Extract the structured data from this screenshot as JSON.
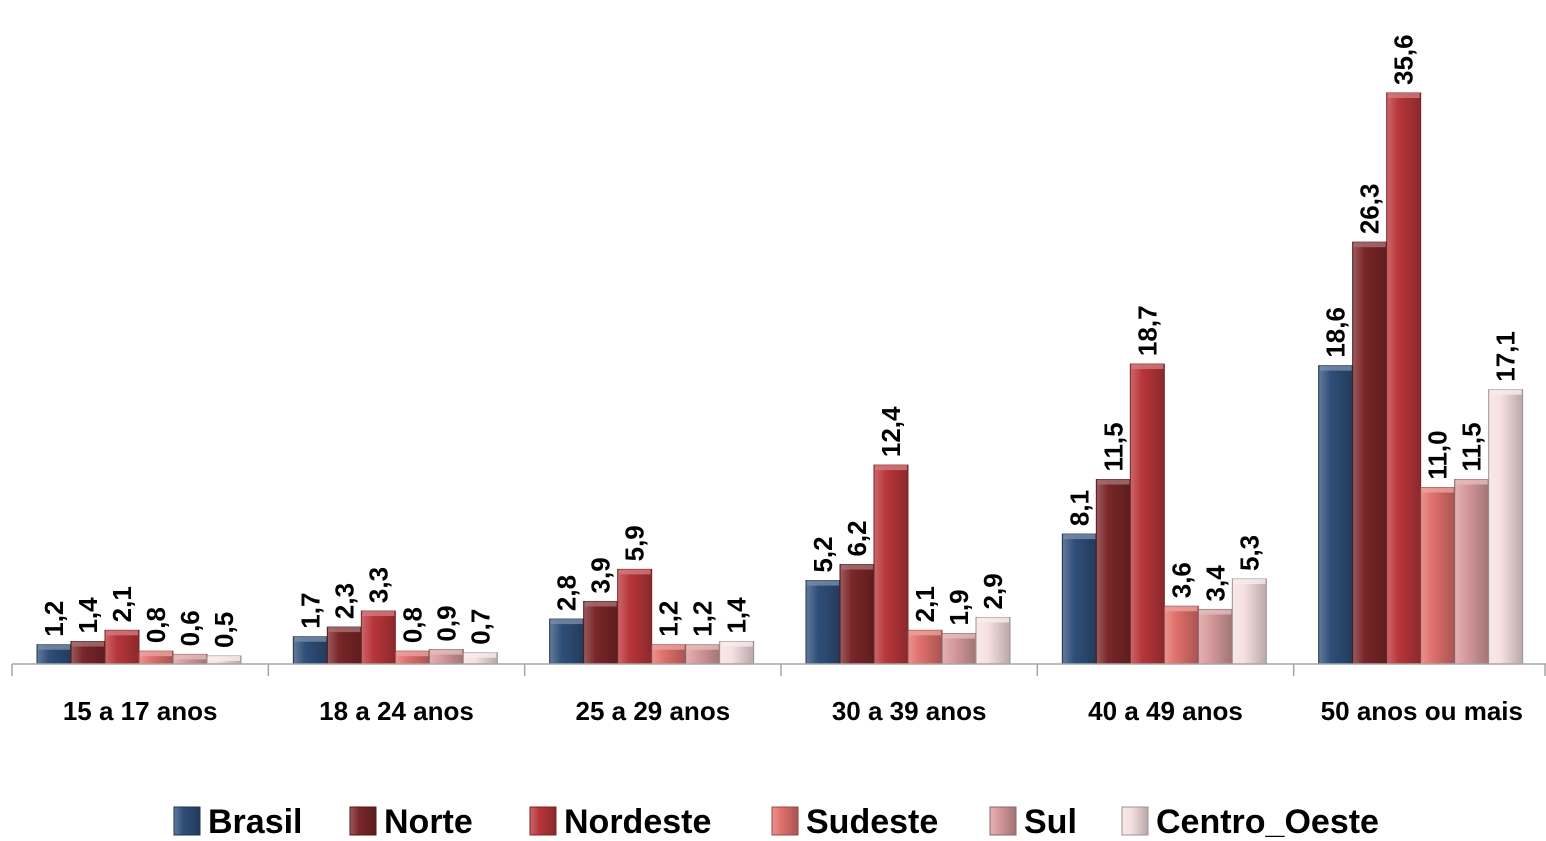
{
  "chart_data": {
    "type": "bar",
    "categories": [
      "15 a 17 anos",
      "18 a 24 anos",
      "25 a 29 anos",
      "30 a 39 anos",
      "40 a 49 anos",
      "50 anos ou mais"
    ],
    "series": [
      {
        "name": "Brasil",
        "values": [
          1.2,
          1.7,
          2.8,
          5.2,
          8.1,
          18.6
        ],
        "labels": [
          "1,2",
          "1,7",
          "2,8",
          "5,2",
          "8,1",
          "18,6"
        ],
        "color": "#2F4F79"
      },
      {
        "name": "Norte",
        "values": [
          1.4,
          2.3,
          3.9,
          6.2,
          11.5,
          26.3
        ],
        "labels": [
          "1,4",
          "2,3",
          "3,9",
          "6,2",
          "11,5",
          "26,3"
        ],
        "color": "#7A2628"
      },
      {
        "name": "Nordeste",
        "values": [
          2.1,
          3.3,
          5.9,
          12.4,
          18.7,
          35.6
        ],
        "labels": [
          "2,1",
          "3,3",
          "5,9",
          "12,4",
          "18,7",
          "35,6"
        ],
        "color": "#B8363A"
      },
      {
        "name": "Sudeste",
        "values": [
          0.8,
          0.8,
          1.2,
          2.1,
          3.6,
          11.0
        ],
        "labels": [
          "0,8",
          "0,8",
          "1,2",
          "2,1",
          "3,6",
          "11,0"
        ],
        "color": "#E0706C"
      },
      {
        "name": "Sul",
        "values": [
          0.6,
          0.9,
          1.2,
          1.9,
          3.4,
          11.5
        ],
        "labels": [
          "0,6",
          "0,9",
          "1,2",
          "1,9",
          "3,4",
          "11,5"
        ],
        "color": "#D69A9B"
      },
      {
        "name": "Centro_Oeste",
        "values": [
          0.5,
          0.7,
          1.4,
          2.9,
          5.3,
          17.1
        ],
        "labels": [
          "0,5",
          "0,7",
          "1,4",
          "2,9",
          "5,3",
          "17,1"
        ],
        "color": "#F6E0E1"
      }
    ],
    "ylim": [
      0,
      35.6
    ],
    "grid": false,
    "legend_position": "bottom"
  }
}
